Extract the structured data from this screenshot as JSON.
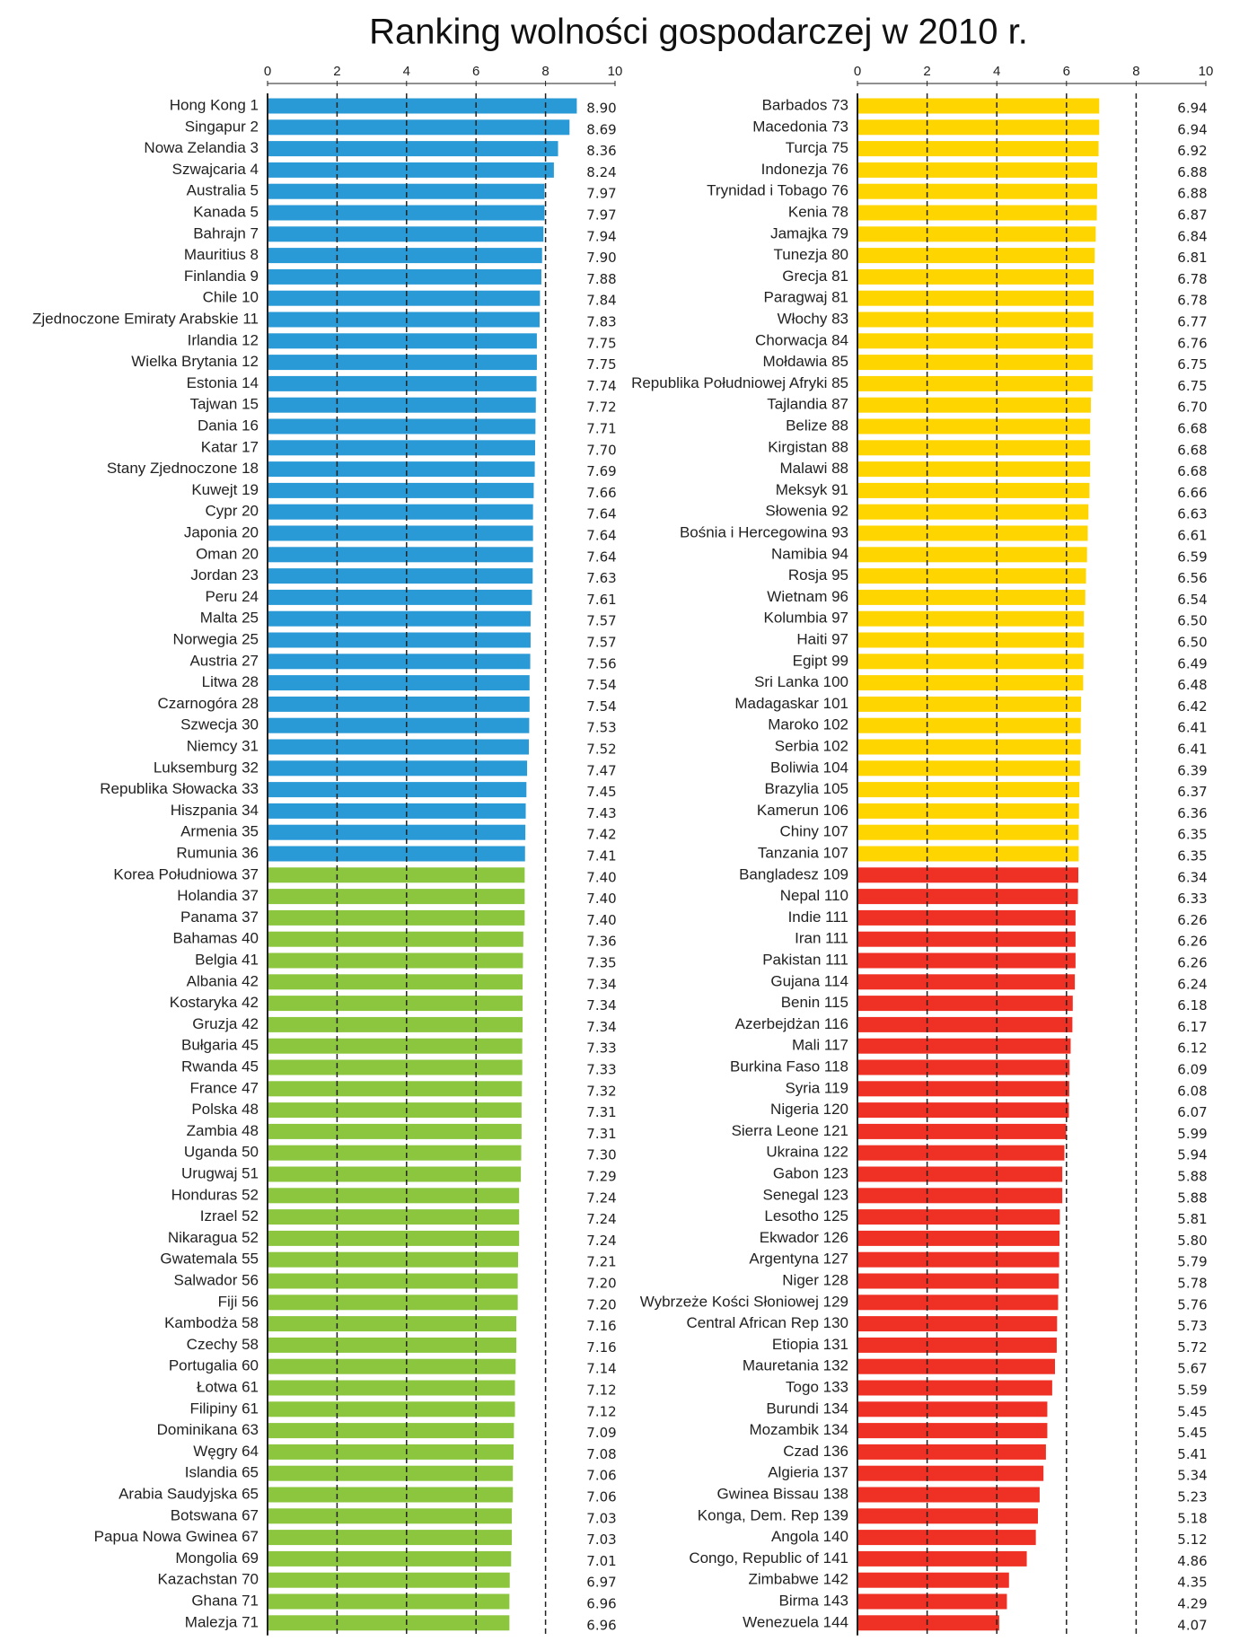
{
  "title": "Ranking wolności gospodarczej w 2010 r.",
  "chart_data": [
    {
      "type": "hbar",
      "xlim": [
        0,
        10
      ],
      "xticks": [
        0,
        2,
        4,
        6,
        8,
        10
      ],
      "grid": true,
      "categories": [
        "Hong Kong 1",
        "Singapur 2",
        "Nowa Zelandia 3",
        "Szwajcaria 4",
        "Australia 5",
        "Kanada 5",
        "Bahrajn 7",
        "Mauritius 8",
        "Finlandia 9",
        "Chile 10",
        "Zjednoczone Emiraty Arabskie 11",
        "Irlandia 12",
        "Wielka Brytania 12",
        "Estonia 14",
        "Tajwan 15",
        "Dania 16",
        "Katar 17",
        "Stany Zjednoczone 18",
        "Kuwejt 19",
        "Cypr 20",
        "Japonia 20",
        "Oman 20",
        "Jordan 23",
        "Peru 24",
        "Malta 25",
        "Norwegia 25",
        "Austria 27",
        "Litwa 28",
        "Czarnogóra 28",
        "Szwecja 30",
        "Niemcy 31",
        "Luksemburg 32",
        "Republika Słowacka 33",
        "Hiszpania 34",
        "Armenia 35",
        "Rumunia 36",
        "Korea Południowa 37",
        "Holandia 37",
        "Panama 37",
        "Bahamas 40",
        "Belgia 41",
        "Albania 42",
        "Kostaryka 42",
        "Gruzja 42",
        "Bułgaria 45",
        "Rwanda 45",
        "France 47",
        "Polska 48",
        "Zambia 48",
        "Uganda 50",
        "Urugwaj 51",
        "Honduras 52",
        "Izrael 52",
        "Nikaragua 52",
        "Gwatemala 55",
        "Salwador 56",
        "Fiji 56",
        "Kambodża 58",
        "Czechy 58",
        "Portugalia 60",
        "Łotwa 61",
        "Filipiny 61",
        "Dominikana 63",
        "Węgry 64",
        "Islandia 65",
        "Arabia Saudyjska 65",
        "Botswana 67",
        "Papua Nowa Gwinea 67",
        "Mongolia 69",
        "Kazachstan 70",
        "Ghana 71",
        "Malezja 71"
      ],
      "values": [
        8.9,
        8.69,
        8.36,
        8.24,
        7.97,
        7.97,
        7.94,
        7.9,
        7.88,
        7.84,
        7.83,
        7.75,
        7.75,
        7.74,
        7.72,
        7.71,
        7.7,
        7.69,
        7.66,
        7.64,
        7.64,
        7.64,
        7.63,
        7.61,
        7.57,
        7.57,
        7.56,
        7.54,
        7.54,
        7.53,
        7.52,
        7.47,
        7.45,
        7.43,
        7.42,
        7.41,
        7.4,
        7.4,
        7.4,
        7.36,
        7.35,
        7.34,
        7.34,
        7.34,
        7.33,
        7.33,
        7.32,
        7.31,
        7.31,
        7.3,
        7.29,
        7.24,
        7.24,
        7.24,
        7.21,
        7.2,
        7.2,
        7.16,
        7.16,
        7.14,
        7.12,
        7.12,
        7.09,
        7.08,
        7.06,
        7.06,
        7.03,
        7.03,
        7.01,
        6.97,
        6.96,
        6.96
      ],
      "value_labels": [
        "8.90",
        "8.69",
        "8.36",
        "8.24",
        "7.97",
        "7.97",
        "7.94",
        "7.90",
        "7.88",
        "7.84",
        "7.83",
        "7.75",
        "7.75",
        "7.74",
        "7.72",
        "7.71",
        "7.70",
        "7.69",
        "7.66",
        "7.64",
        "7.64",
        "7.64",
        "7.63",
        "7.61",
        "7.57",
        "7.57",
        "7.56",
        "7.54",
        "7.54",
        "7.53",
        "7.52",
        "7.47",
        "7.45",
        "7.43",
        "7.42",
        "7.41",
        "7.40",
        "7.40",
        "7.40",
        "7.36",
        "7.35",
        "7.34",
        "7.34",
        "7.34",
        "7.33",
        "7.33",
        "7.32",
        "7.31",
        "7.31",
        "7.30",
        "7.29",
        "7.24",
        "7.24",
        "7.24",
        "7.21",
        "7.20",
        "7.20",
        "7.16",
        "7.16",
        "7.14",
        "7.12",
        "7.12",
        "7.09",
        "7.08",
        "7.06",
        "7.06",
        "7.03",
        "7.03",
        "7.01",
        "6.97",
        "6.96",
        "6.96"
      ],
      "colors": [
        "#2a9ad6",
        "#2a9ad6",
        "#2a9ad6",
        "#2a9ad6",
        "#2a9ad6",
        "#2a9ad6",
        "#2a9ad6",
        "#2a9ad6",
        "#2a9ad6",
        "#2a9ad6",
        "#2a9ad6",
        "#2a9ad6",
        "#2a9ad6",
        "#2a9ad6",
        "#2a9ad6",
        "#2a9ad6",
        "#2a9ad6",
        "#2a9ad6",
        "#2a9ad6",
        "#2a9ad6",
        "#2a9ad6",
        "#2a9ad6",
        "#2a9ad6",
        "#2a9ad6",
        "#2a9ad6",
        "#2a9ad6",
        "#2a9ad6",
        "#2a9ad6",
        "#2a9ad6",
        "#2a9ad6",
        "#2a9ad6",
        "#2a9ad6",
        "#2a9ad6",
        "#2a9ad6",
        "#2a9ad6",
        "#2a9ad6",
        "#8cc63f",
        "#8cc63f",
        "#8cc63f",
        "#8cc63f",
        "#8cc63f",
        "#8cc63f",
        "#8cc63f",
        "#8cc63f",
        "#8cc63f",
        "#8cc63f",
        "#8cc63f",
        "#8cc63f",
        "#8cc63f",
        "#8cc63f",
        "#8cc63f",
        "#8cc63f",
        "#8cc63f",
        "#8cc63f",
        "#8cc63f",
        "#8cc63f",
        "#8cc63f",
        "#8cc63f",
        "#8cc63f",
        "#8cc63f",
        "#8cc63f",
        "#8cc63f",
        "#8cc63f",
        "#8cc63f",
        "#8cc63f",
        "#8cc63f",
        "#8cc63f",
        "#8cc63f",
        "#8cc63f",
        "#8cc63f",
        "#8cc63f",
        "#8cc63f"
      ]
    },
    {
      "type": "hbar",
      "xlim": [
        0,
        10
      ],
      "xticks": [
        0,
        2,
        4,
        6,
        8,
        10
      ],
      "grid": true,
      "categories": [
        "Barbados 73",
        "Macedonia 73",
        "Turcja 75",
        "Indonezja 76",
        "Trynidad i Tobago 76",
        "Kenia 78",
        "Jamajka 79",
        "Tunezja 80",
        "Grecja 81",
        "Paragwaj 81",
        "Włochy 83",
        "Chorwacja 84",
        "Mołdawia 85",
        "Republika Południowej Afryki 85",
        "Tajlandia 87",
        "Belize 88",
        "Kirgistan 88",
        "Malawi 88",
        "Meksyk 91",
        "Słowenia 92",
        "Bośnia i Hercegowina 93",
        "Namibia 94",
        "Rosja 95",
        "Wietnam 96",
        "Kolumbia 97",
        "Haiti 97",
        "Egipt 99",
        "Sri Lanka 100",
        "Madagaskar 101",
        "Maroko 102",
        "Serbia 102",
        "Boliwia 104",
        "Brazylia 105",
        "Kamerun 106",
        "Chiny 107",
        "Tanzania 107",
        "Bangladesz 109",
        "Nepal 110",
        "Indie 111",
        "Iran 111",
        "Pakistan 111",
        "Gujana 114",
        "Benin 115",
        "Azerbejdżan 116",
        "Mali 117",
        "Burkina Faso 118",
        "Syria 119",
        "Nigeria 120",
        "Sierra Leone 121",
        "Ukraina 122",
        "Gabon 123",
        "Senegal 123",
        "Lesotho 125",
        "Ekwador 126",
        "Argentyna 127",
        "Niger 128",
        "Wybrzeże Kości Słoniowej 129",
        "Central African Rep 130",
        "Etiopia 131",
        "Mauretania 132",
        "Togo 133",
        "Burundi 134",
        "Mozambik 134",
        "Czad 136",
        "Algieria 137",
        "Gwinea Bissau 138",
        "Konga, Dem. Rep 139",
        "Angola 140",
        "Congo, Republic of 141",
        "Zimbabwe 142",
        "Birma 143",
        "Wenezuela 144"
      ],
      "values": [
        6.94,
        6.94,
        6.92,
        6.88,
        6.88,
        6.87,
        6.84,
        6.81,
        6.78,
        6.78,
        6.77,
        6.76,
        6.75,
        6.75,
        6.7,
        6.68,
        6.68,
        6.68,
        6.66,
        6.63,
        6.61,
        6.59,
        6.56,
        6.54,
        6.5,
        6.5,
        6.49,
        6.48,
        6.42,
        6.41,
        6.41,
        6.39,
        6.37,
        6.36,
        6.35,
        6.35,
        6.34,
        6.33,
        6.26,
        6.26,
        6.26,
        6.24,
        6.18,
        6.17,
        6.12,
        6.09,
        6.08,
        6.07,
        5.99,
        5.94,
        5.88,
        5.88,
        5.81,
        5.8,
        5.79,
        5.78,
        5.76,
        5.73,
        5.72,
        5.67,
        5.59,
        5.45,
        5.45,
        5.41,
        5.34,
        5.23,
        5.18,
        5.12,
        4.86,
        4.35,
        4.29,
        4.07
      ],
      "value_labels": [
        "6.94",
        "6.94",
        "6.92",
        "6.88",
        "6.88",
        "6.87",
        "6.84",
        "6.81",
        "6.78",
        "6.78",
        "6.77",
        "6.76",
        "6.75",
        "6.75",
        "6.70",
        "6.68",
        "6.68",
        "6.68",
        "6.66",
        "6.63",
        "6.61",
        "6.59",
        "6.56",
        "6.54",
        "6.50",
        "6.50",
        "6.49",
        "6.48",
        "6.42",
        "6.41",
        "6.41",
        "6.39",
        "6.37",
        "6.36",
        "6.35",
        "6.35",
        "6.34",
        "6.33",
        "6.26",
        "6.26",
        "6.26",
        "6.24",
        "6.18",
        "6.17",
        "6.12",
        "6.09",
        "6.08",
        "6.07",
        "5.99",
        "5.94",
        "5.88",
        "5.88",
        "5.81",
        "5.80",
        "5.79",
        "5.78",
        "5.76",
        "5.73",
        "5.72",
        "5.67",
        "5.59",
        "5.45",
        "5.45",
        "5.41",
        "5.34",
        "5.23",
        "5.18",
        "5.12",
        "4.86",
        "4.35",
        "4.29",
        "4.07"
      ],
      "colors": [
        "#ffd500",
        "#ffd500",
        "#ffd500",
        "#ffd500",
        "#ffd500",
        "#ffd500",
        "#ffd500",
        "#ffd500",
        "#ffd500",
        "#ffd500",
        "#ffd500",
        "#ffd500",
        "#ffd500",
        "#ffd500",
        "#ffd500",
        "#ffd500",
        "#ffd500",
        "#ffd500",
        "#ffd500",
        "#ffd500",
        "#ffd500",
        "#ffd500",
        "#ffd500",
        "#ffd500",
        "#ffd500",
        "#ffd500",
        "#ffd500",
        "#ffd500",
        "#ffd500",
        "#ffd500",
        "#ffd500",
        "#ffd500",
        "#ffd500",
        "#ffd500",
        "#ffd500",
        "#ffd500",
        "#ee3124",
        "#ee3124",
        "#ee3124",
        "#ee3124",
        "#ee3124",
        "#ee3124",
        "#ee3124",
        "#ee3124",
        "#ee3124",
        "#ee3124",
        "#ee3124",
        "#ee3124",
        "#ee3124",
        "#ee3124",
        "#ee3124",
        "#ee3124",
        "#ee3124",
        "#ee3124",
        "#ee3124",
        "#ee3124",
        "#ee3124",
        "#ee3124",
        "#ee3124",
        "#ee3124",
        "#ee3124",
        "#ee3124",
        "#ee3124",
        "#ee3124",
        "#ee3124",
        "#ee3124",
        "#ee3124",
        "#ee3124",
        "#ee3124",
        "#ee3124",
        "#ee3124",
        "#ee3124"
      ]
    }
  ]
}
